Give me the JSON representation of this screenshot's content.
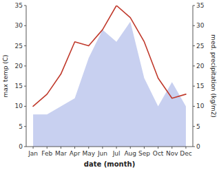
{
  "chart_data": {
    "type": "line",
    "xlabel": "date (month)",
    "ylabel": "max temp (C)",
    "y2label": "med. precipitation (kg/m2)",
    "categories": [
      "Jan",
      "Feb",
      "Mar",
      "Apr",
      "May",
      "Jun",
      "Jul",
      "Aug",
      "Sep",
      "Oct",
      "Nov",
      "Dec"
    ],
    "series": [
      {
        "type": "area",
        "axis": "y2",
        "color": "#c8d0f0",
        "values": [
          8,
          8,
          10,
          12,
          22,
          29,
          26,
          31,
          17,
          10,
          16,
          10
        ]
      },
      {
        "type": "line",
        "color": "#c0392b",
        "values": [
          10,
          13,
          18,
          26,
          25,
          29,
          35,
          32,
          26,
          17,
          12,
          13
        ]
      }
    ],
    "ylim": [
      0,
      35
    ],
    "yticks": [
      0,
      5,
      10,
      15,
      20,
      25,
      30,
      35
    ],
    "y2lim": [
      0,
      35
    ],
    "y2ticks": [
      0,
      5,
      10,
      15,
      20,
      25,
      30,
      35
    ],
    "grid": false
  }
}
